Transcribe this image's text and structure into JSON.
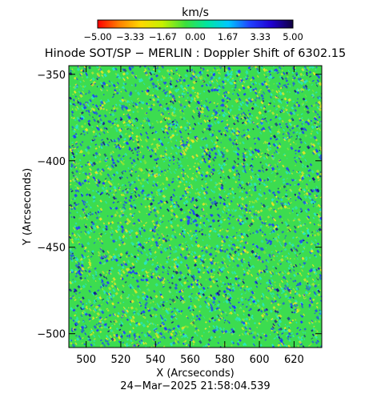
{
  "colorbar": {
    "unit": "km/s",
    "range": [
      -5.0,
      5.0
    ],
    "tick_labels": [
      "−5.00",
      "−3.33",
      "−1.67",
      "0.00",
      "1.67",
      "3.33",
      "5.00"
    ],
    "colormap": [
      "#ff0000",
      "#ff8000",
      "#ffd800",
      "#c8f000",
      "#3ce03c",
      "#00e6a0",
      "#00c8ff",
      "#2040ff",
      "#2000d0",
      "#100040"
    ]
  },
  "title": "Hinode SOT/SP − MERLIN : Doppler Shift of 6302.15",
  "x_axis": {
    "label": "X (Arcseconds)",
    "range": [
      490,
      636
    ],
    "ticks": [
      500,
      520,
      540,
      560,
      580,
      600,
      620
    ],
    "tick_labels": [
      "500",
      "520",
      "540",
      "560",
      "580",
      "600",
      "620"
    ]
  },
  "y_axis": {
    "label": "Y (Arcseconds)",
    "range": [
      -508,
      -345
    ],
    "ticks": [
      -350,
      -400,
      -450,
      -500
    ],
    "tick_labels": [
      "−350",
      "−400",
      "−450",
      "−500"
    ]
  },
  "timestamp": "24−Mar−2025 21:58:04.539",
  "image": {
    "description_colors": {
      "base": "#3cdc50",
      "speckle_blue": "#1e3cff",
      "speckle_yellow": "#e6e628",
      "speckle_cyan": "#28e6c8",
      "speckle_dark": "#14148c"
    }
  }
}
